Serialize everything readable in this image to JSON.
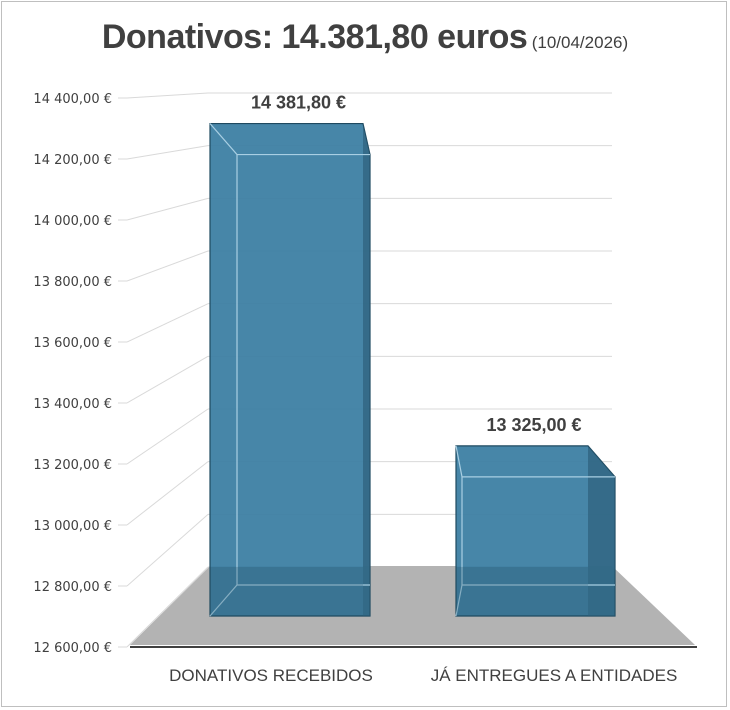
{
  "header": {
    "title": "Donativos: 14.381,80 euros",
    "date": "(10/04/2026)"
  },
  "colors": {
    "bar_front": "#3d7fa3",
    "bar_dark": "#2a5a74",
    "floor": "#b3b3b3",
    "grid": "#d9d9d9",
    "text": "#404040"
  },
  "chart_data": {
    "type": "bar",
    "title": "Donativos: 14.381,80 euros",
    "subtitle": "(10/04/2026)",
    "categories": [
      "DONATIVOS RECEBIDOS",
      "JÁ ENTREGUES A ENTIDADES"
    ],
    "values": [
      14381.8,
      13325.0
    ],
    "data_labels": [
      "14 381,80 €",
      "13 325,00 €"
    ],
    "ylim": [
      12600,
      14400
    ],
    "yticks": [
      12600,
      12800,
      13000,
      13200,
      13400,
      13600,
      13800,
      14000,
      14200,
      14400
    ],
    "ytick_labels": [
      "12 600,00 €",
      "12 800,00 €",
      "13 000,00 €",
      "13 200,00 €",
      "13 400,00 €",
      "13 600,00 €",
      "13 800,00 €",
      "14 000,00 €",
      "14 200,00 €",
      "14 400,00 €"
    ],
    "grid": true,
    "legend": "none",
    "style": "3d-column"
  }
}
